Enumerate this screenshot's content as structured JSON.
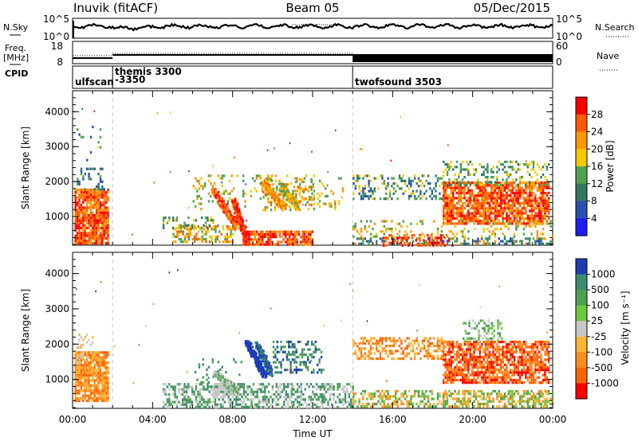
{
  "header": {
    "station": "Inuvik (fitACF)",
    "beam": "Beam 05",
    "date": "05/Dec/2015"
  },
  "sidepanel": {
    "nsky_label": "N.Sky",
    "nsearch_label": "N.Search",
    "freq_label": "Freq.",
    "freq_unit": "[MHz]",
    "nave_label": "Nave",
    "cpid_label": "CPID"
  },
  "noise_axis": {
    "ticks_left": [
      "10^5",
      "10^0"
    ],
    "ticks_right": [
      "10^5",
      "10^0"
    ]
  },
  "freq_axis": {
    "ticks_left": [
      "18",
      "8"
    ],
    "ticks_right": [
      "60",
      "0"
    ]
  },
  "cpid_modes": [
    {
      "label": "ulfscan",
      "start_hour": 0.0
    },
    {
      "label": "themis 3300",
      "label2": "-3350",
      "start_hour": 2.0
    },
    {
      "label": "twofsound 3503",
      "start_hour": 14.0
    }
  ],
  "chart_data": [
    {
      "type": "heatmap",
      "name": "power",
      "xlabel": "",
      "ylabel": "Slant Range [km]",
      "xlim": [
        0,
        24
      ],
      "ylim": [
        180,
        4600
      ],
      "yticks": [
        1000,
        2000,
        3000,
        4000
      ],
      "colorbar": {
        "label": "Power [dB]",
        "ticks": [
          "28",
          "24",
          "20",
          "16",
          "12",
          "8",
          "4"
        ],
        "colors": [
          "#ff0000",
          "#ff5a00",
          "#ff9600",
          "#f5c800",
          "#50a050",
          "#327860",
          "#2850b4",
          "#1e1ef0"
        ]
      },
      "scatter_regions": [
        {
          "t0": 0.1,
          "t1": 1.8,
          "r0": 250,
          "r1": 1800,
          "c": [
            0,
            1,
            2
          ],
          "d": 0.9
        },
        {
          "t0": 0.2,
          "t1": 1.6,
          "r0": 1800,
          "r1": 2400,
          "c": [
            4,
            5,
            6
          ],
          "d": 0.3
        },
        {
          "t0": 0.2,
          "t1": 1.6,
          "r0": 2600,
          "r1": 3600,
          "c": [
            4,
            6
          ],
          "d": 0.05
        },
        {
          "t0": 5.0,
          "t1": 8.0,
          "r0": 250,
          "r1": 750,
          "c": [
            1,
            2,
            3,
            4
          ],
          "d": 0.5
        },
        {
          "t0": 4.5,
          "t1": 7.0,
          "r0": 700,
          "r1": 1000,
          "c": [
            3,
            4,
            5
          ],
          "d": 0.3
        },
        {
          "t0": 8.5,
          "t1": 12.0,
          "r0": 200,
          "r1": 600,
          "c": [
            0,
            1,
            2
          ],
          "d": 0.8
        },
        {
          "t0": 6.0,
          "t1": 13.5,
          "r0": 1200,
          "r1": 2200,
          "c": [
            2,
            3,
            4
          ],
          "d": 0.15
        },
        {
          "t0": 9.5,
          "t1": 12.0,
          "r0": 1200,
          "r1": 2100,
          "c": [
            1,
            2,
            3,
            4
          ],
          "d": 0.3
        },
        {
          "t0": 14.0,
          "t1": 24.0,
          "r0": 200,
          "r1": 400,
          "c": [
            2,
            4,
            5,
            6
          ],
          "d": 0.5
        },
        {
          "t0": 15.5,
          "t1": 19.0,
          "r0": 200,
          "r1": 500,
          "c": [
            0,
            1
          ],
          "d": 0.4
        },
        {
          "t0": 14.0,
          "t1": 18.5,
          "r0": 1500,
          "r1": 2200,
          "c": [
            3,
            4,
            5,
            6
          ],
          "d": 0.3
        },
        {
          "t0": 18.5,
          "t1": 23.8,
          "r0": 800,
          "r1": 2000,
          "c": [
            0,
            1,
            2
          ],
          "d": 0.8
        },
        {
          "t0": 18.5,
          "t1": 23.8,
          "r0": 1900,
          "r1": 2600,
          "c": [
            3,
            4,
            5
          ],
          "d": 0.3
        },
        {
          "t0": 14.0,
          "t1": 24.0,
          "r0": 400,
          "r1": 900,
          "c": [
            2,
            3,
            4
          ],
          "d": 0.2
        }
      ],
      "streaks": [
        {
          "t0": 7.0,
          "t1": 8.2,
          "r0": 1800,
          "r1": 700,
          "c": [
            0,
            1,
            2
          ]
        },
        {
          "t0": 8.0,
          "t1": 8.7,
          "r0": 1500,
          "r1": 300,
          "c": [
            0,
            1
          ]
        },
        {
          "t0": 9.5,
          "t1": 10.5,
          "r0": 2000,
          "r1": 1300,
          "c": [
            1,
            2,
            3
          ]
        },
        {
          "t0": 10.4,
          "t1": 11.2,
          "r0": 1900,
          "r1": 1300,
          "c": [
            2,
            3,
            4
          ]
        }
      ]
    },
    {
      "type": "heatmap",
      "name": "velocity",
      "xlabel": "Time UT",
      "ylabel": "Slant Range [km]",
      "xlim": [
        0,
        24
      ],
      "ylim": [
        180,
        4600
      ],
      "xticks": [
        "00:00",
        "04:00",
        "08:00",
        "12:00",
        "16:00",
        "20:00",
        "00:00"
      ],
      "yticks": [
        1000,
        2000,
        3000,
        4000
      ],
      "colorbar": {
        "label": "Velocity [m s⁻¹]",
        "ticks": [
          "1000",
          "500",
          "100",
          "25",
          "-25",
          "-100",
          "-500",
          "-1000"
        ],
        "colors": [
          "#1e3cb4",
          "#3c8c6e",
          "#50a050",
          "#6ec83c",
          "#c8c8c8",
          "#ffb432",
          "#ff8c1e",
          "#ff6400",
          "#ff0000"
        ]
      },
      "scatter_regions": [
        {
          "t0": 0.1,
          "t1": 1.8,
          "r0": 400,
          "r1": 1800,
          "c": [
            5,
            6,
            7
          ],
          "d": 0.9
        },
        {
          "t0": 0.1,
          "t1": 1.0,
          "r0": 1500,
          "r1": 2300,
          "c": [
            4,
            5
          ],
          "d": 0.3
        },
        {
          "t0": 4.5,
          "t1": 14.0,
          "r0": 200,
          "r1": 900,
          "c": [
            1,
            2,
            4
          ],
          "d": 0.5
        },
        {
          "t0": 7.0,
          "t1": 8.3,
          "r0": 500,
          "r1": 900,
          "c": [
            4
          ],
          "d": 0.5
        },
        {
          "t0": 6.0,
          "t1": 8.5,
          "r0": 900,
          "r1": 1600,
          "c": [
            1,
            2
          ],
          "d": 0.1
        },
        {
          "t0": 10.0,
          "t1": 12.5,
          "r0": 1200,
          "r1": 2100,
          "c": [
            0,
            1,
            2
          ],
          "d": 0.4
        },
        {
          "t0": 14.0,
          "t1": 24.0,
          "r0": 200,
          "r1": 700,
          "c": [
            2,
            3,
            5,
            6
          ],
          "d": 0.55
        },
        {
          "t0": 14.0,
          "t1": 18.5,
          "r0": 1600,
          "r1": 2200,
          "c": [
            5,
            6,
            7
          ],
          "d": 0.5
        },
        {
          "t0": 18.5,
          "t1": 23.8,
          "r0": 900,
          "r1": 2100,
          "c": [
            6,
            7,
            8
          ],
          "d": 0.75
        },
        {
          "t0": 19.5,
          "t1": 21.5,
          "r0": 2100,
          "r1": 2700,
          "c": [
            4,
            3,
            2
          ],
          "d": 0.4
        }
      ],
      "streaks": [
        {
          "t0": 8.7,
          "t1": 9.6,
          "r0": 2100,
          "r1": 1100,
          "c": [
            0
          ]
        },
        {
          "t0": 9.2,
          "t1": 9.9,
          "r0": 2000,
          "r1": 1200,
          "c": [
            0,
            1
          ]
        },
        {
          "t0": 7.1,
          "t1": 8.2,
          "r0": 1200,
          "r1": 700,
          "c": [
            4,
            2
          ]
        }
      ]
    }
  ]
}
